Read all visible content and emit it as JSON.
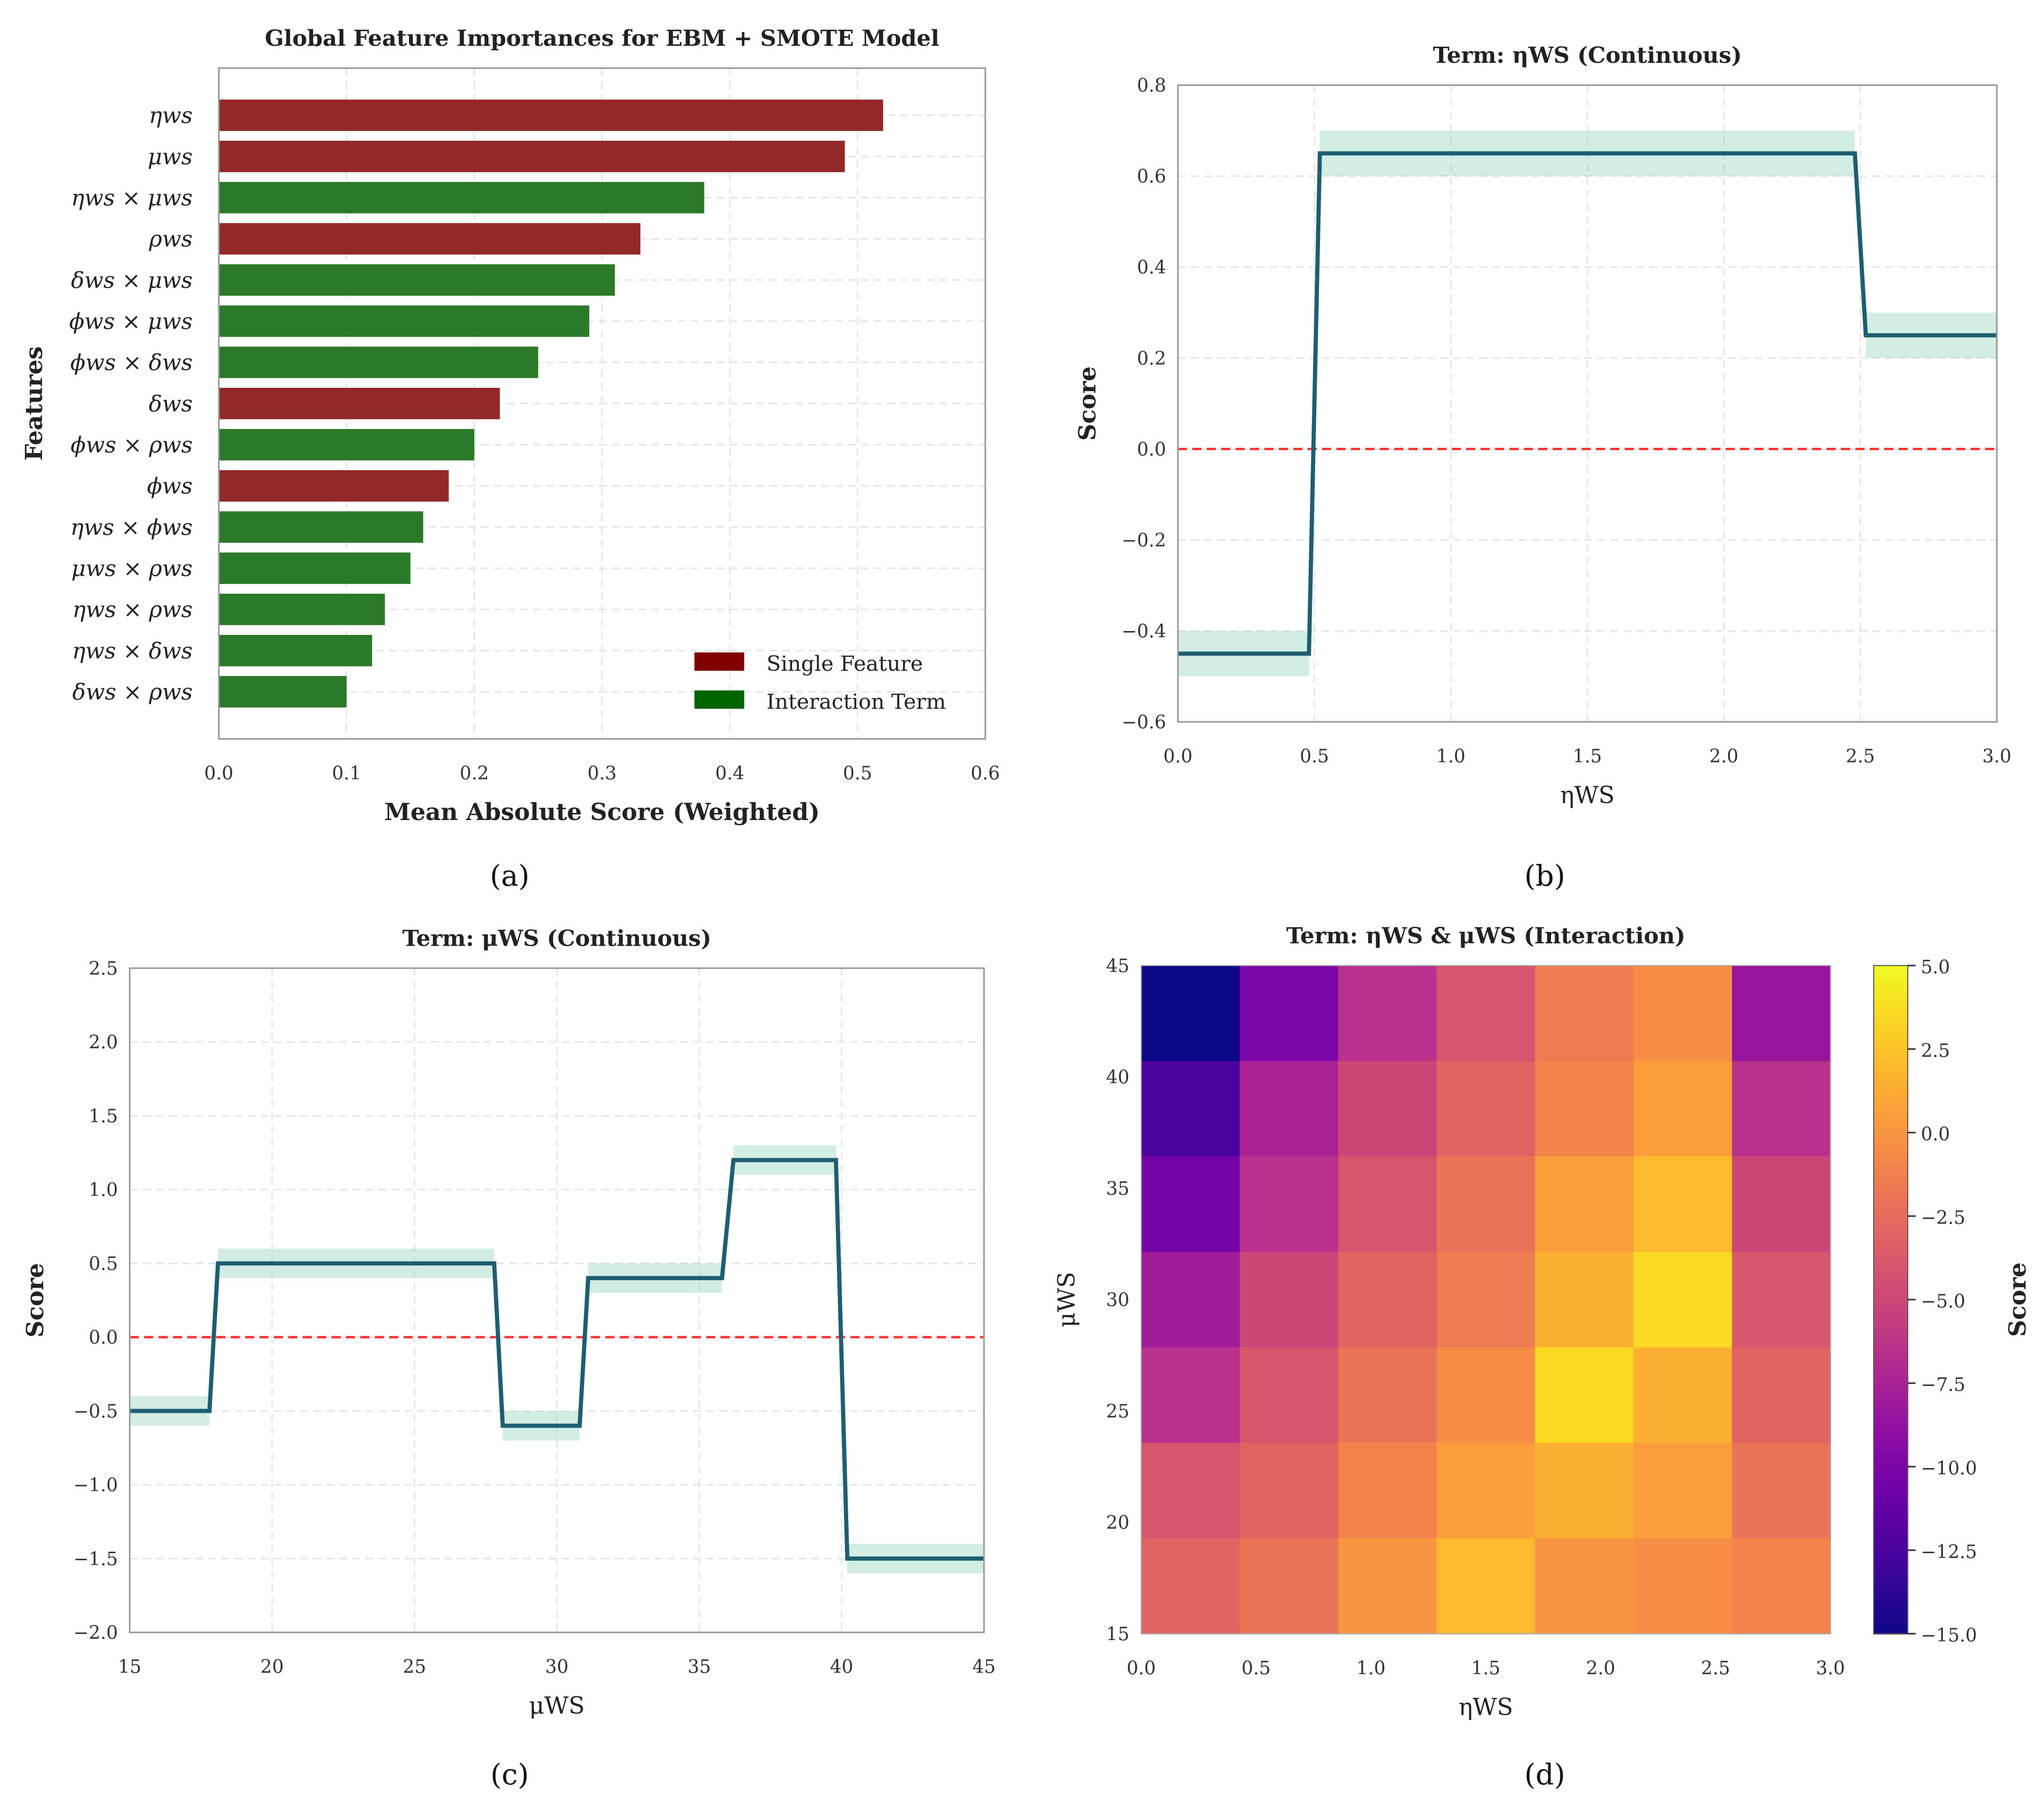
{
  "panel_labels": [
    "(a)",
    "(b)",
    "(c)",
    "(d)"
  ],
  "chart_data": [
    {
      "type": "bar",
      "orientation": "horizontal",
      "title": "Global Feature Importances for EBM + SMOTE Model",
      "xlabel": "Mean Absolute Score (Weighted)",
      "ylabel": "Features",
      "xlim": [
        0,
        0.6
      ],
      "xticks": [
        0,
        0.1,
        0.2,
        0.3,
        0.4,
        0.5,
        0.6
      ],
      "xtick_labels": [
        "0.0",
        "0.1",
        "0.2",
        "0.3",
        "0.4",
        "0.5",
        "0.6"
      ],
      "grid": true,
      "categories": [
        "ηws",
        "μws",
        "ηws × μws",
        "ρws",
        "δws × μws",
        "ϕws × μws",
        "ϕws × δws",
        "δws",
        "ϕws × ρws",
        "ϕws",
        "ηws × ϕws",
        "μws × ρws",
        "ηws × ρws",
        "ηws × δws",
        "δws × ρws"
      ],
      "values": [
        0.52,
        0.49,
        0.38,
        0.33,
        0.31,
        0.29,
        0.25,
        0.22,
        0.2,
        0.18,
        0.16,
        0.15,
        0.13,
        0.12,
        0.1
      ],
      "kinds": [
        "single",
        "single",
        "interaction",
        "single",
        "interaction",
        "interaction",
        "interaction",
        "single",
        "interaction",
        "single",
        "interaction",
        "interaction",
        "interaction",
        "interaction",
        "interaction"
      ],
      "colors": {
        "single": "#922828",
        "interaction": "#2a7a2a",
        "single_legend": "#800000",
        "interaction_legend": "#006400"
      },
      "legend": {
        "placement": "lower-right",
        "entries": [
          "Single Feature",
          "Interaction Term"
        ]
      }
    },
    {
      "type": "line",
      "title": "Term: ηWS (Continuous)",
      "xlabel": "ηWS",
      "ylabel": "Score",
      "xlim": [
        0,
        3
      ],
      "ylim": [
        -0.6,
        0.8
      ],
      "xticks": [
        0,
        0.5,
        1,
        1.5,
        2,
        2.5,
        3
      ],
      "xtick_labels": [
        "0.0",
        "0.5",
        "1.0",
        "1.5",
        "2.0",
        "2.5",
        "3.0"
      ],
      "yticks": [
        -0.6,
        -0.4,
        -0.2,
        0,
        0.2,
        0.4,
        0.6,
        0.8
      ],
      "ytick_labels": [
        "−0.6",
        "−0.4",
        "−0.2",
        "0.0",
        "0.2",
        "0.4",
        "0.6",
        "0.8"
      ],
      "reference_line": 0,
      "grid": true,
      "segments": [
        {
          "x0": 0,
          "x1": 0.48,
          "y": -0.45,
          "lo": -0.5,
          "hi": -0.4
        },
        {
          "x0": 0.52,
          "x1": 2.48,
          "y": 0.65,
          "lo": 0.6,
          "hi": 0.7
        },
        {
          "x0": 2.52,
          "x1": 3.0,
          "y": 0.25,
          "lo": 0.2,
          "hi": 0.3
        }
      ],
      "colors": {
        "line": "#1d5e72",
        "band": "#66c2a5",
        "reference": "#ff3333"
      }
    },
    {
      "type": "line",
      "title": "Term: μWS (Continuous)",
      "xlabel": "μWS",
      "ylabel": "Score",
      "xlim": [
        15,
        45
      ],
      "ylim": [
        -2,
        2.5
      ],
      "xticks": [
        15,
        20,
        25,
        30,
        35,
        40,
        45
      ],
      "xtick_labels": [
        "15",
        "20",
        "25",
        "30",
        "35",
        "40",
        "45"
      ],
      "yticks": [
        -2,
        -1.5,
        -1,
        -0.5,
        0,
        0.5,
        1,
        1.5,
        2,
        2.5
      ],
      "ytick_labels": [
        "−2.0",
        "−1.5",
        "−1.0",
        "−0.5",
        "0.0",
        "0.5",
        "1.0",
        "1.5",
        "2.0",
        "2.5"
      ],
      "reference_line": 0,
      "grid": true,
      "segments": [
        {
          "x0": 15,
          "x1": 17.8,
          "y": -0.5,
          "lo": -0.6,
          "hi": -0.4
        },
        {
          "x0": 18.1,
          "x1": 27.8,
          "y": 0.5,
          "lo": 0.4,
          "hi": 0.6
        },
        {
          "x0": 28.1,
          "x1": 30.8,
          "y": -0.6,
          "lo": -0.7,
          "hi": -0.5
        },
        {
          "x0": 31.1,
          "x1": 35.8,
          "y": 0.4,
          "lo": 0.3,
          "hi": 0.5
        },
        {
          "x0": 36.2,
          "x1": 39.8,
          "y": 1.2,
          "lo": 1.1,
          "hi": 1.3
        },
        {
          "x0": 40.2,
          "x1": 45,
          "y": -1.5,
          "lo": -1.6,
          "hi": -1.4
        }
      ],
      "colors": {
        "line": "#1d5e72",
        "band": "#66c2a5",
        "reference": "#ff3333"
      }
    },
    {
      "type": "heatmap",
      "title": "Term: ηWS & μWS (Interaction)",
      "xlabel": "ηWS",
      "ylabel": "μWS",
      "xlim": [
        0,
        3
      ],
      "ylim": [
        15,
        45
      ],
      "xticks": [
        0,
        0.5,
        1,
        1.5,
        2,
        2.5,
        3
      ],
      "xtick_labels": [
        "0.0",
        "0.5",
        "1.0",
        "1.5",
        "2.0",
        "2.5",
        "3.0"
      ],
      "yticks": [
        15,
        20,
        25,
        30,
        35,
        40,
        45
      ],
      "ytick_labels": [
        "15",
        "20",
        "25",
        "30",
        "35",
        "40",
        "45"
      ],
      "colormap": "plasma",
      "colorbar": {
        "label": "Score",
        "range": [
          -15,
          5
        ],
        "ticks": [
          -15,
          -12.5,
          -10,
          -7.5,
          -5,
          -2.5,
          0,
          2.5,
          5
        ],
        "tick_labels": [
          "−15.0",
          "−12.5",
          "−10.0",
          "−7.5",
          "−5.0",
          "−2.5",
          "0.0",
          "2.5",
          "5.0"
        ]
      },
      "rows_top_to_bottom": [
        [
          -15,
          -10,
          -6.5,
          -4,
          -1.5,
          -0.5,
          -8.5
        ],
        [
          -12.5,
          -7.5,
          -5,
          -3,
          -1,
          0.5,
          -6.5
        ],
        [
          -10.5,
          -6.5,
          -4,
          -2,
          0.5,
          2,
          -5
        ],
        [
          -8,
          -5,
          -3,
          -1.5,
          1.5,
          3.5,
          -4
        ],
        [
          -6.5,
          -4,
          -2,
          -0.5,
          3.5,
          1.5,
          -3
        ],
        [
          -4,
          -3,
          -1,
          0.5,
          1.5,
          0.5,
          -2
        ],
        [
          -3,
          -2,
          0,
          2,
          0,
          -0.5,
          -1
        ]
      ]
    }
  ]
}
